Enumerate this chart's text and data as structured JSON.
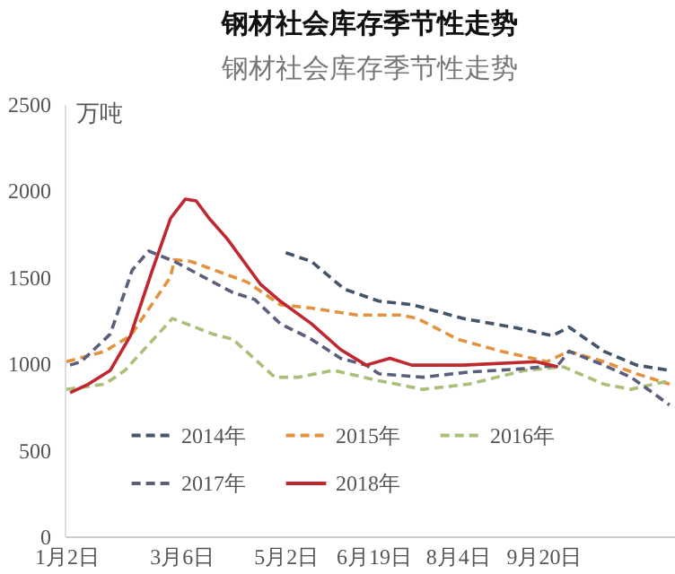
{
  "chart_data": {
    "type": "line",
    "title": "钢材社会库存季节性走势",
    "subtitle": "钢材社会库存季节性走势",
    "ylabel": "万吨",
    "xlim": [
      "--01-01",
      "--12-01"
    ],
    "xticks": [
      {
        "value": "--01-02",
        "label": "1月2日"
      },
      {
        "value": "--03-06",
        "label": "3月6日"
      },
      {
        "value": "--05-02",
        "label": "5月2日"
      },
      {
        "value": "--06-19",
        "label": "6月19日"
      },
      {
        "value": "--08-04",
        "label": "8月4日"
      },
      {
        "value": "--09-20",
        "label": "9月20日"
      }
    ],
    "ylim": [
      0,
      2500
    ],
    "yticks": [
      0,
      500,
      1000,
      1500,
      2000,
      2500
    ],
    "grid": false,
    "legend": "bottom",
    "marker": "none",
    "series": [
      {
        "name": "2014年",
        "color": "#44546a",
        "line_style": "dashed",
        "x": [
          "--05-02",
          "--05-16",
          "--06-03",
          "--06-22",
          "--07-10",
          "--08-07",
          "--09-03",
          "--09-25",
          "--10-04",
          "--10-23",
          "--11-10",
          "--11-28"
        ],
        "values": [
          1640,
          1590,
          1430,
          1360,
          1340,
          1260,
          1210,
          1160,
          1210,
          1070,
          990,
          960
        ]
      },
      {
        "name": "2015年",
        "color": "#e3923f",
        "line_style": "dashed",
        "x": [
          "--01-02",
          "--01-23",
          "--02-06",
          "--02-28",
          "--03-02",
          "--03-11",
          "--04-11",
          "--04-29",
          "--05-16",
          "--06-10",
          "--07-04",
          "--07-13",
          "--08-04",
          "--08-28",
          "--09-22",
          "--10-04",
          "--10-23",
          "--11-10",
          "--11-28"
        ],
        "values": [
          1010,
          1070,
          1160,
          1500,
          1600,
          1590,
          1470,
          1340,
          1320,
          1280,
          1280,
          1260,
          1140,
          1070,
          1010,
          1070,
          1010,
          940,
          880
        ]
      },
      {
        "name": "2016年",
        "color": "#a9bf7a",
        "line_style": "dashed",
        "x": [
          "--01-02",
          "--01-23",
          "--02-03",
          "--03-01",
          "--03-23",
          "--04-03",
          "--04-26",
          "--05-09",
          "--05-28",
          "--06-22",
          "--07-16",
          "--08-10",
          "--09-10",
          "--10-01",
          "--10-23",
          "--11-07",
          "--11-28"
        ],
        "values": [
          850,
          880,
          960,
          1260,
          1170,
          1140,
          920,
          920,
          960,
          900,
          850,
          880,
          960,
          980,
          880,
          850,
          900
        ]
      },
      {
        "name": "2017年",
        "color": "#5b5f7e",
        "line_style": "dashed",
        "x": [
          "--01-04",
          "--01-10",
          "--01-26",
          "--02-07",
          "--02-16",
          "--03-02",
          "--04-03",
          "--04-15",
          "--04-29",
          "--05-16",
          "--06-01",
          "--06-15",
          "--06-22",
          "--07-16",
          "--08-10",
          "--09-10",
          "--09-28",
          "--10-04",
          "--10-23",
          "--11-07",
          "--11-28"
        ],
        "values": [
          990,
          1010,
          1170,
          1540,
          1650,
          1590,
          1410,
          1370,
          1230,
          1140,
          1030,
          990,
          940,
          920,
          950,
          970,
          990,
          1070,
          990,
          920,
          760
        ]
      },
      {
        "name": "2018年",
        "color": "#c0282f",
        "line_style": "solid",
        "x": [
          "--01-04",
          "--01-14",
          "--01-26",
          "--02-06",
          "--02-18",
          "--02-28",
          "--03-08",
          "--03-14",
          "--03-21",
          "--03-31",
          "--04-18",
          "--04-29",
          "--05-16",
          "--06-01",
          "--06-15",
          "--06-28",
          "--07-10",
          "--08-07",
          "--09-16",
          "--09-28"
        ],
        "values": [
          830,
          880,
          960,
          1160,
          1540,
          1840,
          1950,
          1940,
          1840,
          1720,
          1460,
          1360,
          1230,
          1080,
          990,
          1030,
          990,
          990,
          1010,
          980
        ]
      }
    ]
  }
}
